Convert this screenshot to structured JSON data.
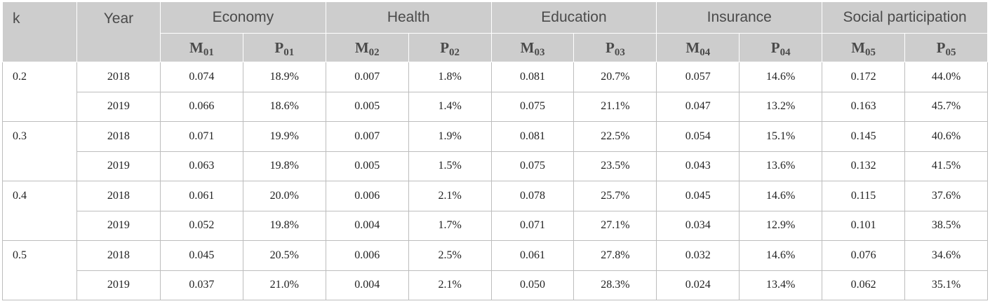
{
  "headers": {
    "k": "k",
    "year": "Year",
    "groups": [
      "Economy",
      "Health",
      "Education",
      "Insurance",
      "Social participation"
    ],
    "sub": [
      {
        "letter": "M",
        "index": "01"
      },
      {
        "letter": "P",
        "index": "01"
      },
      {
        "letter": "M",
        "index": "02"
      },
      {
        "letter": "P",
        "index": "02"
      },
      {
        "letter": "M",
        "index": "03"
      },
      {
        "letter": "P",
        "index": "03"
      },
      {
        "letter": "M",
        "index": "04"
      },
      {
        "letter": "P",
        "index": "04"
      },
      {
        "letter": "M",
        "index": "05"
      },
      {
        "letter": "P",
        "index": "05"
      }
    ]
  },
  "groups": [
    {
      "k": "0.2",
      "rows": [
        {
          "year": "2018",
          "values": [
            "0.074",
            "18.9%",
            "0.007",
            "1.8%",
            "0.081",
            "20.7%",
            "0.057",
            "14.6%",
            "0.172",
            "44.0%"
          ]
        },
        {
          "year": "2019",
          "values": [
            "0.066",
            "18.6%",
            "0.005",
            "1.4%",
            "0.075",
            "21.1%",
            "0.047",
            "13.2%",
            "0.163",
            "45.7%"
          ]
        }
      ]
    },
    {
      "k": "0.3",
      "rows": [
        {
          "year": "2018",
          "values": [
            "0.071",
            "19.9%",
            "0.007",
            "1.9%",
            "0.081",
            "22.5%",
            "0.054",
            "15.1%",
            "0.145",
            "40.6%"
          ]
        },
        {
          "year": "2019",
          "values": [
            "0.063",
            "19.8%",
            "0.005",
            "1.5%",
            "0.075",
            "23.5%",
            "0.043",
            "13.6%",
            "0.132",
            "41.5%"
          ]
        }
      ]
    },
    {
      "k": "0.4",
      "rows": [
        {
          "year": "2018",
          "values": [
            "0.061",
            "20.0%",
            "0.006",
            "2.1%",
            "0.078",
            "25.7%",
            "0.045",
            "14.6%",
            "0.115",
            "37.6%"
          ]
        },
        {
          "year": "2019",
          "values": [
            "0.052",
            "19.8%",
            "0.004",
            "1.7%",
            "0.071",
            "27.1%",
            "0.034",
            "12.9%",
            "0.101",
            "38.5%"
          ]
        }
      ]
    },
    {
      "k": "0.5",
      "rows": [
        {
          "year": "2018",
          "values": [
            "0.045",
            "20.5%",
            "0.006",
            "2.5%",
            "0.061",
            "27.8%",
            "0.032",
            "14.6%",
            "0.076",
            "34.6%"
          ]
        },
        {
          "year": "2019",
          "values": [
            "0.037",
            "21.0%",
            "0.004",
            "2.1%",
            "0.050",
            "28.3%",
            "0.024",
            "13.4%",
            "0.062",
            "35.1%"
          ]
        }
      ]
    }
  ]
}
